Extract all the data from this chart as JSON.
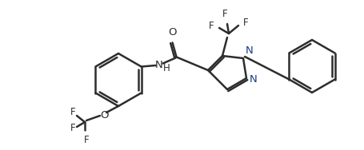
{
  "bg_color": "#ffffff",
  "line_color": "#2d2d2d",
  "blue_color": "#1a3a8a",
  "line_width": 1.8,
  "font_size": 8.5,
  "figsize": [
    4.56,
    1.88
  ],
  "dpi": 100,
  "xlim": [
    0,
    456
  ],
  "ylim": [
    0,
    188
  ]
}
